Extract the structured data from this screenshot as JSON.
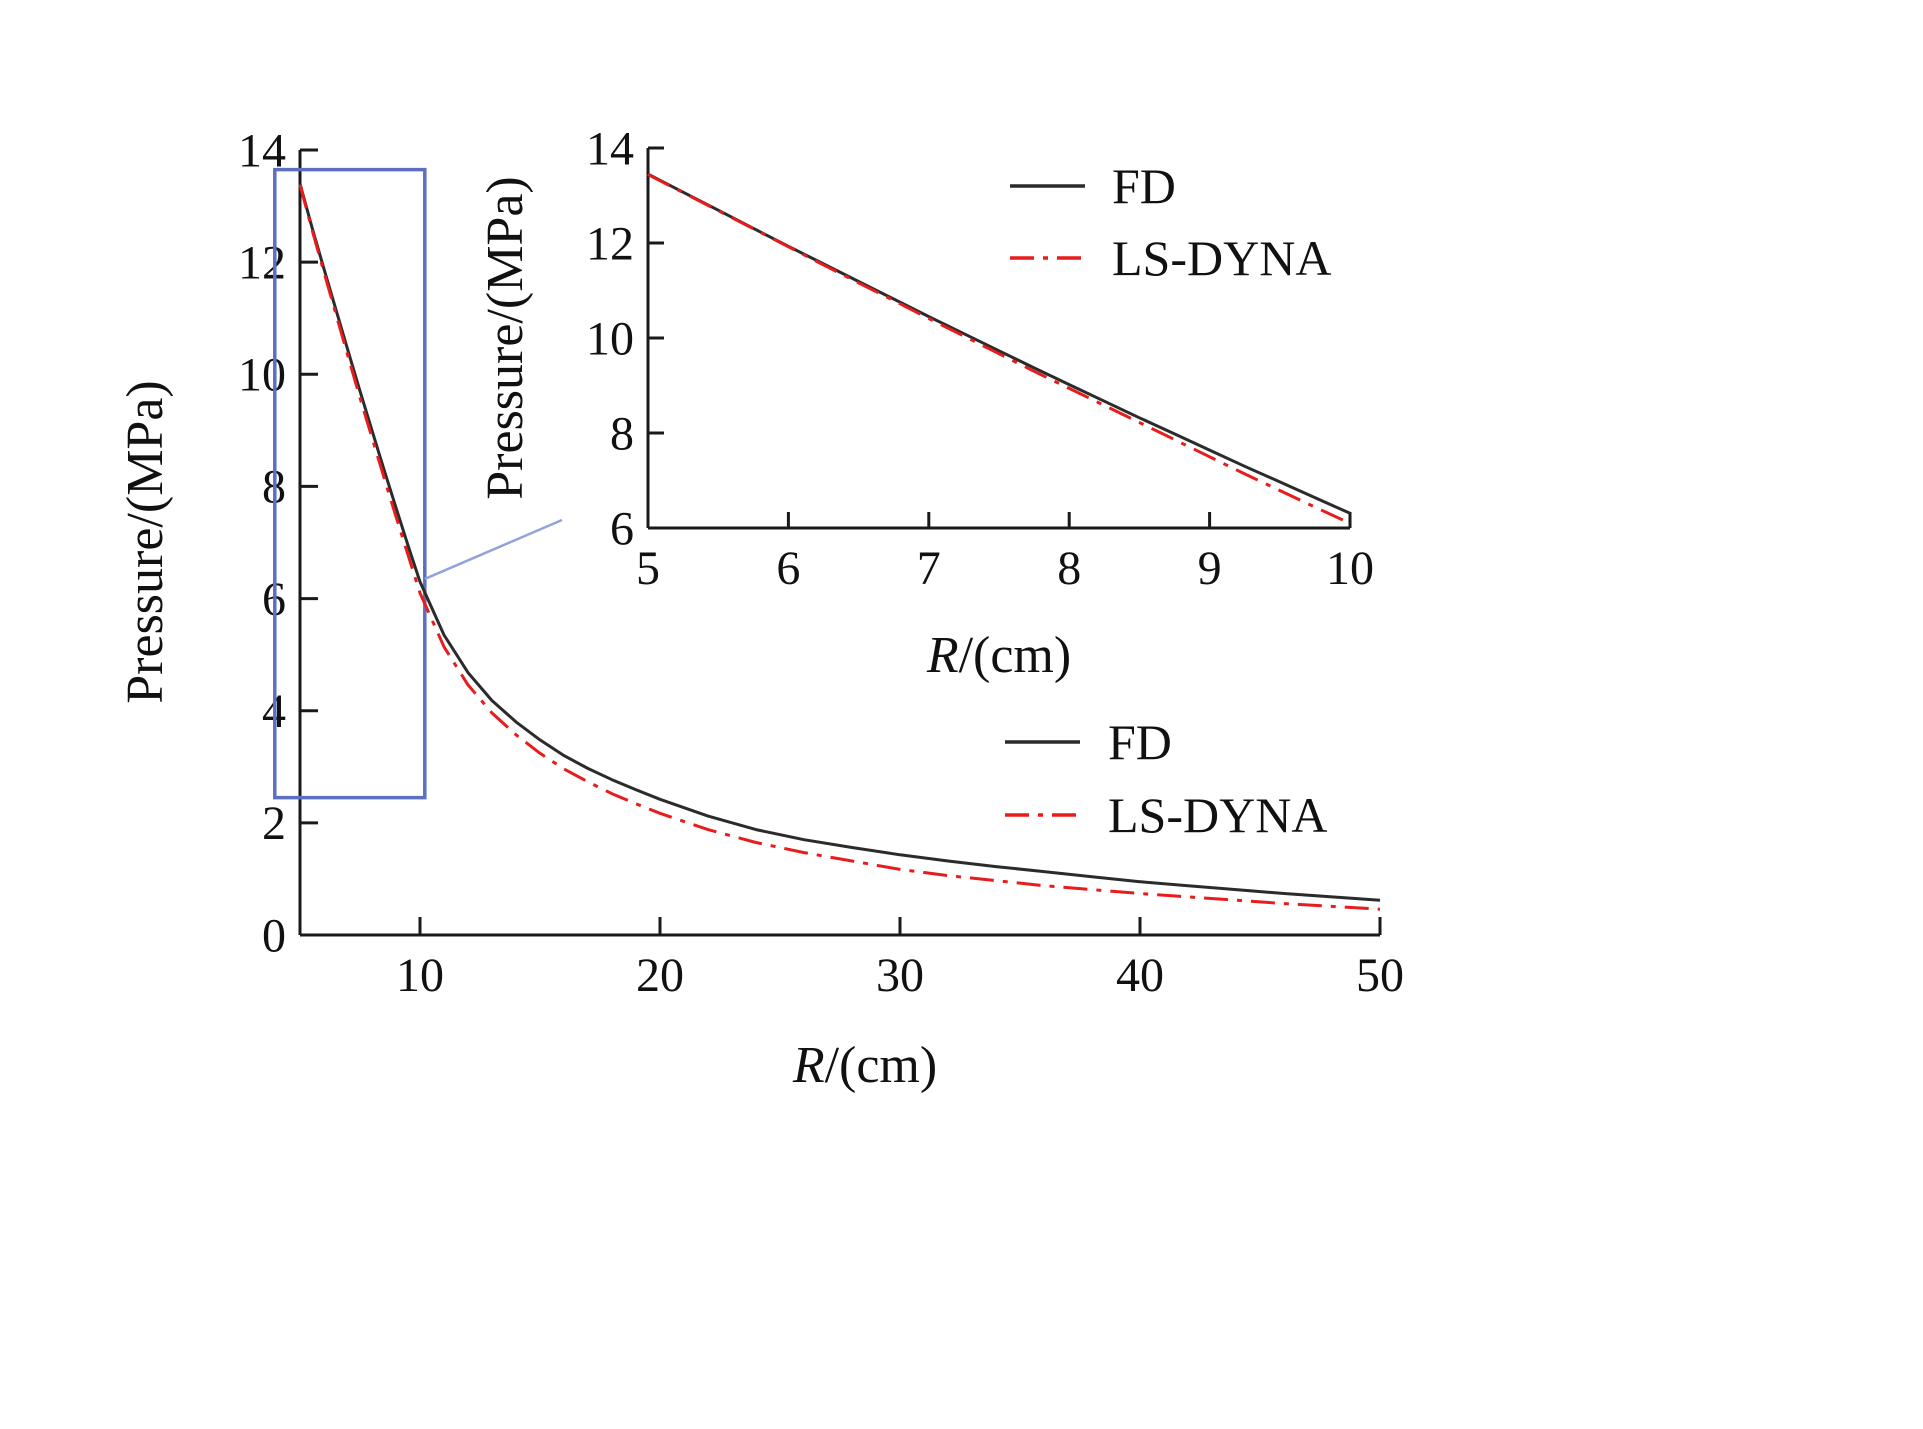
{
  "figure": {
    "background": "#ffffff",
    "description": "Pressure versus radius comparison of FD and LS-DYNA results with zoomed inset of R = 5 to 10 cm"
  },
  "chart_data": [
    {
      "id": "main",
      "type": "line",
      "title": "",
      "xlabel": "R/(cm)",
      "ylabel": "Pressure/(MPa)",
      "xlim": [
        5,
        50
      ],
      "ylim": [
        0,
        14
      ],
      "xticks": [
        10,
        20,
        30,
        40,
        50
      ],
      "yticks": [
        0,
        2,
        4,
        6,
        8,
        10,
        12,
        14
      ],
      "grid": false,
      "legend": [
        "FD",
        "LS-DYNA"
      ],
      "legend_position": "center-right",
      "series": [
        {
          "name": "FD",
          "color": "#2b2b2b",
          "style": "solid",
          "x": [
            5,
            5.5,
            6,
            6.5,
            7,
            7.5,
            8,
            8.5,
            9,
            9.5,
            10,
            11,
            12,
            13,
            14,
            15,
            16,
            17,
            18,
            19,
            20,
            22,
            24,
            26,
            28,
            30,
            32,
            34,
            36,
            38,
            40,
            42,
            44,
            46,
            48,
            50
          ],
          "y": [
            13.4,
            12.62,
            11.88,
            11.15,
            10.42,
            9.7,
            9.0,
            8.3,
            7.62,
            6.95,
            6.3,
            5.35,
            4.68,
            4.18,
            3.8,
            3.48,
            3.2,
            2.97,
            2.77,
            2.59,
            2.42,
            2.12,
            1.88,
            1.7,
            1.56,
            1.43,
            1.32,
            1.22,
            1.13,
            1.04,
            0.95,
            0.88,
            0.81,
            0.74,
            0.68,
            0.62
          ]
        },
        {
          "name": "LS-DYNA",
          "color": "#e81c1c",
          "style": "dashdot",
          "x": [
            5,
            5.5,
            6,
            6.5,
            7,
            7.5,
            8,
            8.5,
            9,
            9.5,
            10,
            11,
            12,
            13,
            14,
            15,
            16,
            17,
            18,
            19,
            20,
            22,
            24,
            26,
            28,
            30,
            32,
            34,
            36,
            38,
            40,
            42,
            44,
            46,
            48,
            50
          ],
          "y": [
            13.38,
            12.58,
            11.82,
            11.07,
            10.32,
            9.58,
            8.87,
            8.16,
            7.46,
            6.78,
            6.1,
            5.14,
            4.46,
            3.96,
            3.57,
            3.24,
            2.96,
            2.73,
            2.52,
            2.34,
            2.17,
            1.88,
            1.65,
            1.47,
            1.32,
            1.17,
            1.06,
            0.97,
            0.88,
            0.81,
            0.74,
            0.68,
            0.62,
            0.56,
            0.51,
            0.46
          ]
        }
      ],
      "zoom_box": {
        "x0": 3.95,
        "x1": 10.2,
        "y0": 2.45,
        "y1": 13.65,
        "color": "#5c6fc0"
      },
      "connector": {
        "x": 10.2,
        "y": 6.35,
        "color": "#93a2d9"
      }
    },
    {
      "id": "inset",
      "type": "line",
      "title": "",
      "xlabel": "R/(cm)",
      "ylabel": "Pressure/(MPa)",
      "xlim": [
        5,
        10
      ],
      "ylim": [
        6,
        14
      ],
      "xticks": [
        5,
        6,
        7,
        8,
        9,
        10
      ],
      "yticks": [
        6,
        8,
        10,
        12,
        14
      ],
      "grid": false,
      "legend": [
        "FD",
        "LS-DYNA"
      ],
      "legend_position": "top-right",
      "series": [
        {
          "name": "FD",
          "color": "#2b2b2b",
          "style": "solid",
          "x": [
            5,
            5.25,
            5.5,
            5.75,
            6,
            6.25,
            6.5,
            6.75,
            7,
            7.25,
            7.5,
            7.75,
            8,
            8.25,
            8.5,
            8.75,
            9,
            9.25,
            9.5,
            9.75,
            10
          ],
          "y": [
            13.45,
            13.07,
            12.69,
            12.31,
            11.93,
            11.56,
            11.19,
            10.82,
            10.45,
            10.09,
            9.73,
            9.37,
            9.02,
            8.67,
            8.32,
            7.98,
            7.64,
            7.3,
            6.97,
            6.64,
            6.31
          ]
        },
        {
          "name": "LS-DYNA",
          "color": "#e81c1c",
          "style": "dashdot",
          "x": [
            5,
            5.25,
            5.5,
            5.75,
            6,
            6.25,
            6.5,
            6.75,
            7,
            7.25,
            7.5,
            7.75,
            8,
            8.25,
            8.5,
            8.75,
            9,
            9.25,
            9.5,
            9.75,
            10
          ],
          "y": [
            13.44,
            13.06,
            12.68,
            12.3,
            11.92,
            11.54,
            11.16,
            10.79,
            10.41,
            10.04,
            9.67,
            9.3,
            8.94,
            8.58,
            8.22,
            7.86,
            7.5,
            7.14,
            6.79,
            6.44,
            6.1
          ]
        }
      ]
    }
  ]
}
